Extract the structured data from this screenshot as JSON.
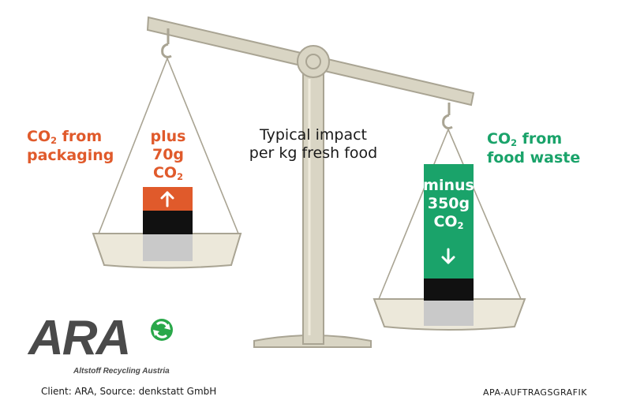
{
  "left_pan": {
    "label_line1_prefix": "CO",
    "label_line1_sub": "2",
    "label_line1_suffix": " from",
    "label_line2": "packaging",
    "amount_line1": "plus",
    "amount_line2": "70g",
    "amount_line3_prefix": "CO",
    "amount_line3_sub": "2",
    "arrow": "up-arrow-icon"
  },
  "center": {
    "line1": "Typical impact",
    "line2": "per kg fresh food"
  },
  "right_pan": {
    "label_line1_prefix": "CO",
    "label_line1_sub": "2",
    "label_line1_suffix": " from",
    "label_line2": "food waste",
    "amount_line1": "minus",
    "amount_line2": "350g",
    "amount_line3_prefix": "CO",
    "amount_line3_sub": "2",
    "arrow": "down-arrow-icon"
  },
  "logo": {
    "word": "ARA",
    "tagline": "Altstoff Recycling Austria"
  },
  "footer": {
    "source": "Client: ARA, Source: denkstatt GmbH",
    "credit": "APA-AUFTRAGSGRAFIK"
  },
  "colors": {
    "packaging": "#e05a2b",
    "food_waste": "#1aa36a",
    "scale": "#d9d5c4",
    "scale_stroke": "#a9a493"
  }
}
